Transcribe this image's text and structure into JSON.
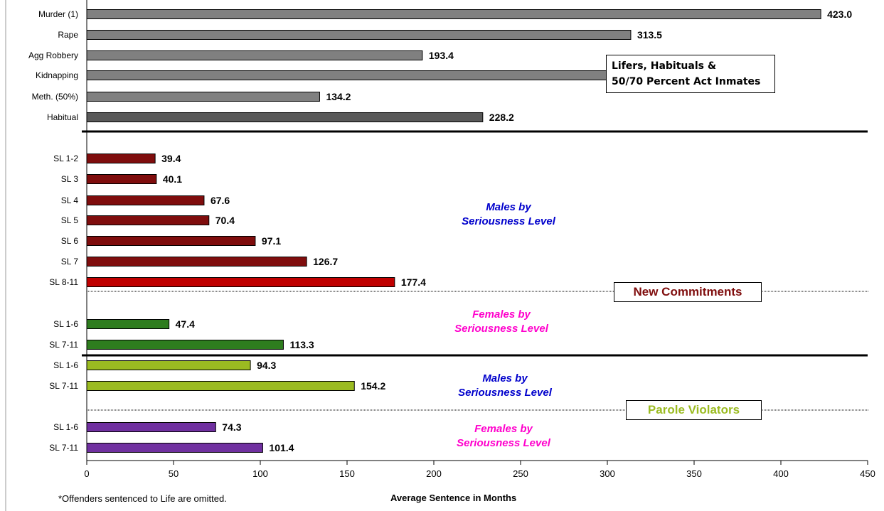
{
  "chart_data": {
    "type": "bar",
    "orientation": "horizontal",
    "xlim": [
      0,
      450
    ],
    "xticks": [
      0,
      50,
      100,
      150,
      200,
      250,
      300,
      350,
      400,
      450
    ],
    "xlabel": "Average Sentence in Months",
    "grid": false,
    "colors": {
      "lifers": "#808080",
      "habitual": "#595959",
      "new_males": "#7f0d0d",
      "new_males_top": "#c00000",
      "new_females": "#2e7d1e",
      "parole_males": "#9bbb21",
      "parole_females": "#7030a0"
    },
    "bars": [
      {
        "label": "Murder (1)",
        "value": 423.0,
        "value_text": "423.0",
        "color": "lifers"
      },
      {
        "label": "Rape",
        "value": 313.5,
        "value_text": "313.5",
        "color": "lifers"
      },
      {
        "label": "Agg Robbery",
        "value": 193.4,
        "value_text": "193.4",
        "color": "lifers"
      },
      {
        "label": "Kidnapping",
        "value": 311.0,
        "value_text": "",
        "color": "lifers"
      },
      {
        "label": "Meth. (50%)",
        "value": 134.2,
        "value_text": "134.2",
        "color": "lifers"
      },
      {
        "label": "Habitual",
        "value": 228.2,
        "value_text": "228.2",
        "color": "habitual"
      },
      {
        "label": "SL 1-2",
        "value": 39.4,
        "value_text": "39.4",
        "color": "new_males"
      },
      {
        "label": "SL 3",
        "value": 40.1,
        "value_text": "40.1",
        "color": "new_males"
      },
      {
        "label": "SL 4",
        "value": 67.6,
        "value_text": "67.6",
        "color": "new_males"
      },
      {
        "label": "SL 5",
        "value": 70.4,
        "value_text": "70.4",
        "color": "new_males"
      },
      {
        "label": "SL 6",
        "value": 97.1,
        "value_text": "97.1",
        "color": "new_males"
      },
      {
        "label": "SL 7",
        "value": 126.7,
        "value_text": "126.7",
        "color": "new_males"
      },
      {
        "label": "SL 8-11",
        "value": 177.4,
        "value_text": "177.4",
        "color": "new_males_top"
      },
      {
        "label": "SL 1-6",
        "value": 47.4,
        "value_text": "47.4",
        "color": "new_females"
      },
      {
        "label": "SL 7-11",
        "value": 113.3,
        "value_text": "113.3",
        "color": "new_females"
      },
      {
        "label": "SL 1-6",
        "value": 94.3,
        "value_text": "94.3",
        "color": "parole_males"
      },
      {
        "label": "SL 7-11",
        "value": 154.2,
        "value_text": "154.2",
        "color": "parole_males"
      },
      {
        "label": "SL 1-6",
        "value": 74.3,
        "value_text": "74.3",
        "color": "parole_females"
      },
      {
        "label": "SL 7-11",
        "value": 101.4,
        "value_text": "101.4",
        "color": "parole_females"
      }
    ],
    "annotations": {
      "lifers_box": [
        "Lifers, Habituals &",
        "50/70 Percent Act Inmates"
      ],
      "new_commitments": "New Commitments",
      "parole_violators": "Parole Violators",
      "males_by_level": [
        "Males by",
        "Seriousness Level"
      ],
      "females_by_level": [
        "Females by",
        "Seriousness Level"
      ],
      "males_color": "#0000cc",
      "females_color": "#ff00cc"
    },
    "footnote": "*Offenders sentenced to Life are omitted."
  }
}
